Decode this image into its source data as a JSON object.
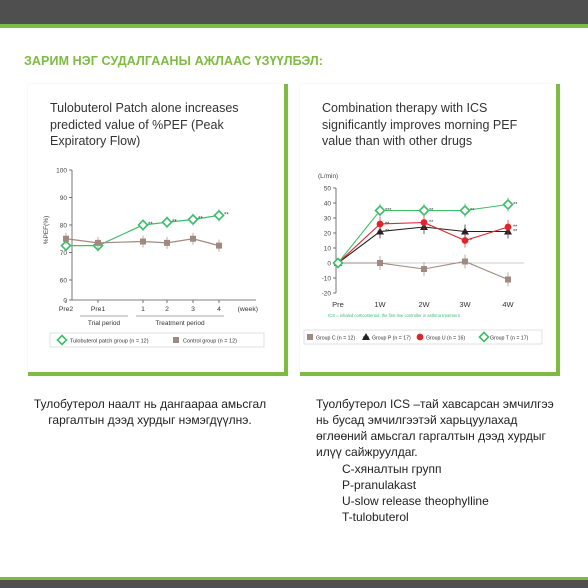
{
  "heading": "ЗАРИМ НЭГ СУДАЛГААНЫ АЖЛААС ҮЗҮҮЛБЭЛ:",
  "colors": {
    "accent": "#7dbb42",
    "band": "#4f4f4f",
    "series_green": "#3dbd6b",
    "series_gray": "#a08a80",
    "series_red": "#e0242a",
    "series_black": "#222222"
  },
  "left_panel": {
    "title": "Tulobuterol Patch alone increases predicted value of %PEF (Peak Expiratory Flow)",
    "caption": "Тулобутерол наалт нь дангаараа амьсгал гаргалтын дээд хурдыг нэмэгдүүлнэ.",
    "chart_data": {
      "type": "line",
      "ylabel": "%PEF(%)",
      "xlabel_unit": "(week)",
      "ylim": [
        0,
        100
      ],
      "yticks": [
        "100",
        "90",
        "80",
        "70",
        "60",
        "0"
      ],
      "categories": [
        "Pre2",
        "Pre1",
        "1",
        "2",
        "3",
        "4"
      ],
      "periods": [
        "Trial period",
        "Treatment period"
      ],
      "series": [
        {
          "name": "Tulobuterol patch group (n = 12)",
          "values": [
            72.5,
            72.5,
            80,
            81,
            82,
            83.5
          ],
          "annotations": [
            "",
            "",
            "**",
            "**",
            "**",
            "**"
          ]
        },
        {
          "name": "Control group (n = 12)",
          "values": [
            75,
            73.5,
            74,
            73.5,
            75,
            72.5
          ],
          "annotations": [
            "",
            "",
            "",
            "",
            "",
            ""
          ]
        }
      ]
    }
  },
  "right_panel": {
    "title": "Combination therapy with ICS significantly improves morning PEF value than with other drugs",
    "caption": "Туолбутерол ICS –тай хавсарсан эмчилгээ нь бусад эмчилгээтэй харьцуулахад өглөөний амьсгал гаргалтын  дээд хурдыг илүү сайжруулдаг.",
    "definitions": [
      "C-хяналтын групп",
      "P-pranulakast",
      "U-slow release theophylline",
      "T-tulobuterol"
    ],
    "chart_data": {
      "type": "line",
      "ylabel": "(L/min)",
      "ylim": [
        -20,
        50
      ],
      "yticks": [
        "50",
        "40",
        "30",
        "20",
        "10",
        "0",
        "-10",
        "-20"
      ],
      "categories": [
        "Pre",
        "1W",
        "2W",
        "3W",
        "4W"
      ],
      "note": "ICS = inhaled corticosteroid, the first-line controller in asthma treatment",
      "series": [
        {
          "name": "Group C (n = 12)",
          "values": [
            0,
            0,
            -4,
            1,
            -11
          ],
          "annotations": [
            "",
            "",
            "",
            "",
            ""
          ]
        },
        {
          "name": "Group P (n = 17)",
          "values": [
            0,
            21,
            24,
            21,
            21
          ],
          "annotations": [
            "",
            "**",
            "*",
            "",
            "**"
          ]
        },
        {
          "name": "Group U (n = 16)",
          "values": [
            0,
            26,
            27,
            15,
            24
          ],
          "annotations": [
            "",
            "**",
            "**",
            "*",
            "**"
          ]
        },
        {
          "name": "Group T (n = 17)",
          "values": [
            0,
            35,
            35,
            35,
            39
          ],
          "annotations": [
            "",
            "***",
            "**",
            "**",
            "**"
          ]
        }
      ]
    }
  }
}
